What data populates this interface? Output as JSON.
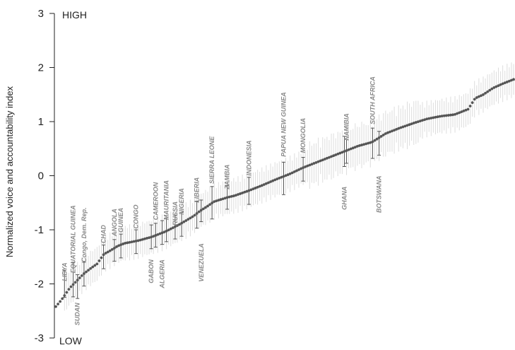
{
  "chart_data": {
    "type": "scatter",
    "ylabel": "Normalized voice and accountability index",
    "ylim": [
      -3,
      3
    ],
    "yticks": [
      3,
      2,
      1,
      0,
      -1,
      -2,
      -3
    ],
    "top_label": "HIGH",
    "bottom_label": "LOW",
    "n_countries": 212,
    "colors": {
      "point": "#555555",
      "highlight_bar": "#555555",
      "background_bar": "#dddddd",
      "country_label": "#8a8a8a"
    },
    "curve": [
      [
        0,
        -2.42
      ],
      [
        4,
        -2.3
      ],
      [
        10,
        -2.08
      ],
      [
        15,
        -1.95
      ],
      [
        20,
        -1.82
      ],
      [
        25,
        -1.72
      ],
      [
        30,
        -1.63
      ],
      [
        35,
        -1.45
      ],
      [
        40,
        -1.38
      ],
      [
        45,
        -1.3
      ],
      [
        50,
        -1.25
      ],
      [
        60,
        -1.2
      ],
      [
        70,
        -1.13
      ],
      [
        80,
        -1.03
      ],
      [
        90,
        -0.9
      ],
      [
        100,
        -0.75
      ],
      [
        105,
        -0.65
      ],
      [
        110,
        -0.57
      ],
      [
        115,
        -0.48
      ],
      [
        125,
        -0.4
      ],
      [
        130,
        -0.37
      ],
      [
        140,
        -0.28
      ],
      [
        150,
        -0.18
      ],
      [
        160,
        -0.07
      ],
      [
        170,
        0.03
      ],
      [
        180,
        0.15
      ],
      [
        190,
        0.25
      ],
      [
        200,
        0.35
      ],
      [
        210,
        0.45
      ],
      [
        220,
        0.55
      ],
      [
        230,
        0.62
      ],
      [
        240,
        0.78
      ],
      [
        250,
        0.88
      ],
      [
        260,
        0.97
      ],
      [
        270,
        1.05
      ],
      [
        280,
        1.1
      ],
      [
        290,
        1.13
      ],
      [
        300,
        1.23
      ],
      [
        305,
        1.43
      ],
      [
        311,
        1.5
      ],
      [
        318,
        1.62
      ],
      [
        325,
        1.7
      ],
      [
        333,
        1.78
      ]
    ],
    "countries": [
      {
        "name": "LIBYA",
        "index": 6,
        "value": -2.0,
        "err": 0.25,
        "label_y": -1.95,
        "side": "above"
      },
      {
        "name": "EQUATORIAL GUINEA",
        "index": 12,
        "value": -1.92,
        "err": 0.32,
        "label_y": -1.8,
        "side": "above"
      },
      {
        "name": "SUDAN",
        "index": 16,
        "value": -2.05,
        "err": 0.22,
        "label_y": -2.35,
        "side": "below"
      },
      {
        "name": "Congo, Dem. Rep.",
        "index": 20,
        "value": -1.82,
        "err": 0.22,
        "label_y": -1.6,
        "side": "above"
      },
      {
        "name": "CHAD",
        "index": 35,
        "value": -1.5,
        "err": 0.22,
        "label_y": -1.25,
        "side": "above"
      },
      {
        "name": "ANGOLA",
        "index": 42,
        "value": -1.38,
        "err": 0.2,
        "label_y": -1.12,
        "side": "above"
      },
      {
        "name": "GUINEA",
        "index": 48,
        "value": -1.3,
        "err": 0.22,
        "label_y": -1.05,
        "side": "above"
      },
      {
        "name": "CONGO",
        "index": 58,
        "value": -1.22,
        "err": 0.22,
        "label_y": -0.98,
        "side": "above"
      },
      {
        "name": "GABON",
        "index": 70,
        "value": -1.13,
        "err": 0.22,
        "label_y": -1.55,
        "side": "below"
      },
      {
        "name": "CAMEROON",
        "index": 73,
        "value": -1.1,
        "err": 0.22,
        "label_y": -0.82,
        "side": "above"
      },
      {
        "name": "ALGERIA",
        "index": 78,
        "value": -1.05,
        "err": 0.22,
        "label_y": -1.55,
        "side": "below"
      },
      {
        "name": "MAURITANIA",
        "index": 80,
        "value": -1.0,
        "err": 0.22,
        "label_y": -0.82,
        "side": "above"
      },
      {
        "name": "RUSSIA",
        "index": 87,
        "value": -0.95,
        "err": 0.22,
        "label_y": -0.92,
        "side": "above"
      },
      {
        "name": "NIGERIA",
        "index": 91,
        "value": -0.9,
        "err": 0.22,
        "label_y": -0.72,
        "side": "above"
      },
      {
        "name": "LIBERIA",
        "index": 103,
        "value": -0.72,
        "err": 0.25,
        "label_y": -0.5,
        "side": "above"
      },
      {
        "name": "VENEZUELA",
        "index": 106,
        "value": -0.65,
        "err": 0.2,
        "label_y": -1.25,
        "side": "below"
      },
      {
        "name": "SIERRA LEONE",
        "index": 113,
        "value": -0.5,
        "err": 0.3,
        "label_y": -0.15,
        "side": "above"
      },
      {
        "name": "ZAMBIA",
        "index": 125,
        "value": -0.4,
        "err": 0.22,
        "label_y": -0.25,
        "side": "above"
      },
      {
        "name": "INDONESIA",
        "index": 140,
        "value": -0.28,
        "err": 0.25,
        "label_y": 0.0,
        "side": "above"
      },
      {
        "name": "PAPUA NEW GUINEA",
        "index": 165,
        "value": -0.05,
        "err": 0.3,
        "label_y": 0.35,
        "side": "above"
      },
      {
        "name": "MONGOLIA",
        "index": 180,
        "value": 0.12,
        "err": 0.22,
        "label_y": 0.42,
        "side": "above"
      },
      {
        "name": "GHANA",
        "index": 210,
        "value": 0.45,
        "err": 0.28,
        "label_y": -0.2,
        "side": "below"
      },
      {
        "name": "NAMIBIA",
        "index": 211,
        "value": 0.45,
        "err": 0.22,
        "label_y": 0.65,
        "side": "above"
      },
      {
        "name": "SOUTH AFRICA",
        "index": 230,
        "value": 0.6,
        "err": 0.28,
        "label_y": 0.95,
        "side": "above"
      },
      {
        "name": "BOTSWANA",
        "index": 235,
        "value": 0.6,
        "err": 0.22,
        "label_y": -0.0,
        "side": "below"
      }
    ]
  }
}
